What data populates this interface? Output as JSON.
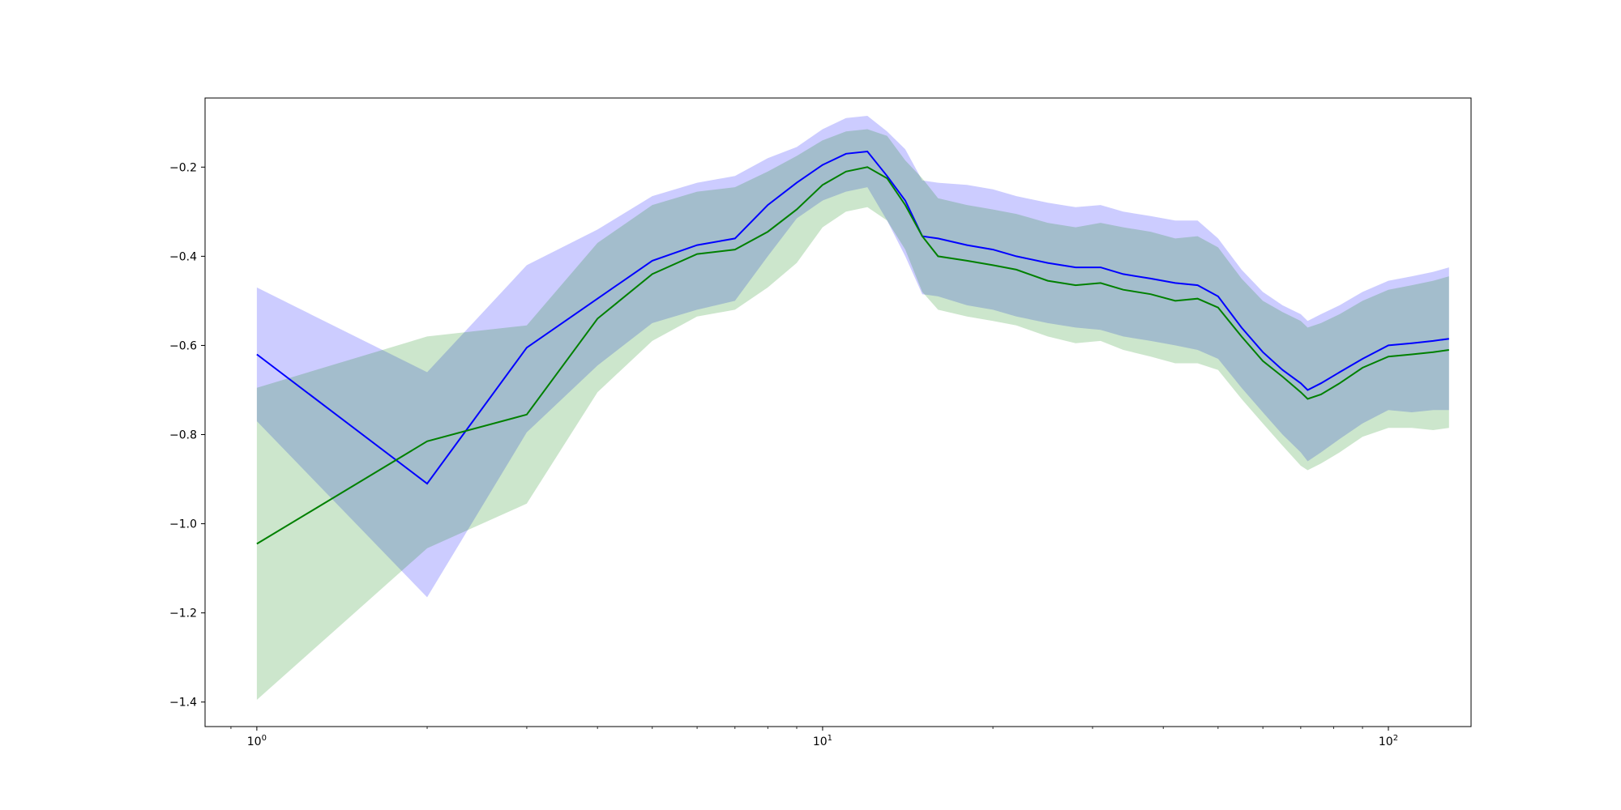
{
  "chart_data": {
    "type": "line",
    "xscale": "log",
    "xlim": [
      0.81,
      140
    ],
    "ylim": [
      -1.455,
      -0.045
    ],
    "xticks": [
      {
        "value": 1,
        "base": "10",
        "exp": "0"
      },
      {
        "value": 10,
        "base": "10",
        "exp": "1"
      },
      {
        "value": 100,
        "base": "10",
        "exp": "2"
      }
    ],
    "yticks": [
      {
        "value": -0.2,
        "label": "−0.2"
      },
      {
        "value": -0.4,
        "label": "−0.4"
      },
      {
        "value": -0.6,
        "label": "−0.6"
      },
      {
        "value": -0.8,
        "label": "−0.8"
      },
      {
        "value": -1.0,
        "label": "−1.0"
      },
      {
        "value": -1.2,
        "label": "−1.2"
      },
      {
        "value": -1.4,
        "label": "−1.4"
      }
    ],
    "grid": false,
    "title": "",
    "xlabel": "",
    "ylabel": "",
    "series": [
      {
        "color": "#0000ff",
        "fill_color": "#0000ff",
        "fill_opacity": 0.2,
        "points": [
          [
            1,
            -0.62,
            -0.47,
            -0.77
          ],
          [
            2,
            -0.91,
            -0.66,
            -1.165
          ],
          [
            3,
            -0.605,
            -0.42,
            -0.795
          ],
          [
            4,
            -0.495,
            -0.34,
            -0.645
          ],
          [
            5,
            -0.41,
            -0.265,
            -0.55
          ],
          [
            6,
            -0.375,
            -0.235,
            -0.52
          ],
          [
            7,
            -0.36,
            -0.22,
            -0.5
          ],
          [
            8,
            -0.285,
            -0.18,
            -0.4
          ],
          [
            9,
            -0.235,
            -0.155,
            -0.315
          ],
          [
            10,
            -0.195,
            -0.115,
            -0.275
          ],
          [
            11,
            -0.17,
            -0.09,
            -0.255
          ],
          [
            12,
            -0.165,
            -0.085,
            -0.245
          ],
          [
            13,
            -0.22,
            -0.12,
            -0.32
          ],
          [
            14,
            -0.275,
            -0.16,
            -0.4
          ],
          [
            15,
            -0.355,
            -0.23,
            -0.485
          ],
          [
            16,
            -0.36,
            -0.235,
            -0.49
          ],
          [
            18,
            -0.375,
            -0.24,
            -0.51
          ],
          [
            20,
            -0.385,
            -0.25,
            -0.52
          ],
          [
            22,
            -0.4,
            -0.265,
            -0.535
          ],
          [
            25,
            -0.415,
            -0.28,
            -0.55
          ],
          [
            28,
            -0.425,
            -0.29,
            -0.56
          ],
          [
            31,
            -0.425,
            -0.285,
            -0.565
          ],
          [
            34,
            -0.44,
            -0.3,
            -0.58
          ],
          [
            38,
            -0.45,
            -0.31,
            -0.59
          ],
          [
            42,
            -0.46,
            -0.32,
            -0.6
          ],
          [
            46,
            -0.465,
            -0.32,
            -0.61
          ],
          [
            50,
            -0.49,
            -0.36,
            -0.63
          ],
          [
            55,
            -0.56,
            -0.43,
            -0.695
          ],
          [
            60,
            -0.615,
            -0.48,
            -0.75
          ],
          [
            65,
            -0.655,
            -0.51,
            -0.8
          ],
          [
            70,
            -0.685,
            -0.53,
            -0.84
          ],
          [
            72,
            -0.7,
            -0.545,
            -0.86
          ],
          [
            76,
            -0.685,
            -0.53,
            -0.84
          ],
          [
            82,
            -0.66,
            -0.51,
            -0.81
          ],
          [
            90,
            -0.63,
            -0.48,
            -0.775
          ],
          [
            100,
            -0.6,
            -0.455,
            -0.745
          ],
          [
            110,
            -0.595,
            -0.445,
            -0.75
          ],
          [
            120,
            -0.59,
            -0.435,
            -0.745
          ],
          [
            128,
            -0.585,
            -0.425,
            -0.745
          ]
        ]
      },
      {
        "color": "#008000",
        "fill_color": "#008000",
        "fill_opacity": 0.2,
        "points": [
          [
            1,
            -1.045,
            -0.695,
            -1.395
          ],
          [
            2,
            -0.815,
            -0.58,
            -1.055
          ],
          [
            3,
            -0.755,
            -0.555,
            -0.955
          ],
          [
            4,
            -0.54,
            -0.37,
            -0.705
          ],
          [
            5,
            -0.44,
            -0.285,
            -0.59
          ],
          [
            6,
            -0.395,
            -0.255,
            -0.535
          ],
          [
            7,
            -0.385,
            -0.245,
            -0.52
          ],
          [
            8,
            -0.345,
            -0.21,
            -0.47
          ],
          [
            9,
            -0.295,
            -0.175,
            -0.415
          ],
          [
            10,
            -0.24,
            -0.14,
            -0.335
          ],
          [
            11,
            -0.21,
            -0.12,
            -0.3
          ],
          [
            12,
            -0.2,
            -0.115,
            -0.29
          ],
          [
            13,
            -0.225,
            -0.13,
            -0.32
          ],
          [
            14,
            -0.285,
            -0.185,
            -0.385
          ],
          [
            15,
            -0.355,
            -0.225,
            -0.48
          ],
          [
            16,
            -0.4,
            -0.27,
            -0.52
          ],
          [
            18,
            -0.41,
            -0.285,
            -0.535
          ],
          [
            20,
            -0.42,
            -0.295,
            -0.545
          ],
          [
            22,
            -0.43,
            -0.305,
            -0.555
          ],
          [
            25,
            -0.455,
            -0.325,
            -0.58
          ],
          [
            28,
            -0.465,
            -0.335,
            -0.595
          ],
          [
            31,
            -0.46,
            -0.325,
            -0.59
          ],
          [
            34,
            -0.475,
            -0.335,
            -0.61
          ],
          [
            38,
            -0.485,
            -0.345,
            -0.625
          ],
          [
            42,
            -0.5,
            -0.36,
            -0.64
          ],
          [
            46,
            -0.495,
            -0.355,
            -0.64
          ],
          [
            50,
            -0.515,
            -0.38,
            -0.655
          ],
          [
            55,
            -0.58,
            -0.45,
            -0.72
          ],
          [
            60,
            -0.635,
            -0.5,
            -0.775
          ],
          [
            65,
            -0.67,
            -0.525,
            -0.825
          ],
          [
            70,
            -0.705,
            -0.545,
            -0.87
          ],
          [
            72,
            -0.72,
            -0.56,
            -0.88
          ],
          [
            76,
            -0.71,
            -0.55,
            -0.865
          ],
          [
            82,
            -0.685,
            -0.53,
            -0.84
          ],
          [
            90,
            -0.65,
            -0.5,
            -0.805
          ],
          [
            100,
            -0.625,
            -0.475,
            -0.785
          ],
          [
            110,
            -0.62,
            -0.465,
            -0.785
          ],
          [
            120,
            -0.615,
            -0.455,
            -0.79
          ],
          [
            128,
            -0.61,
            -0.445,
            -0.785
          ]
        ]
      }
    ]
  }
}
